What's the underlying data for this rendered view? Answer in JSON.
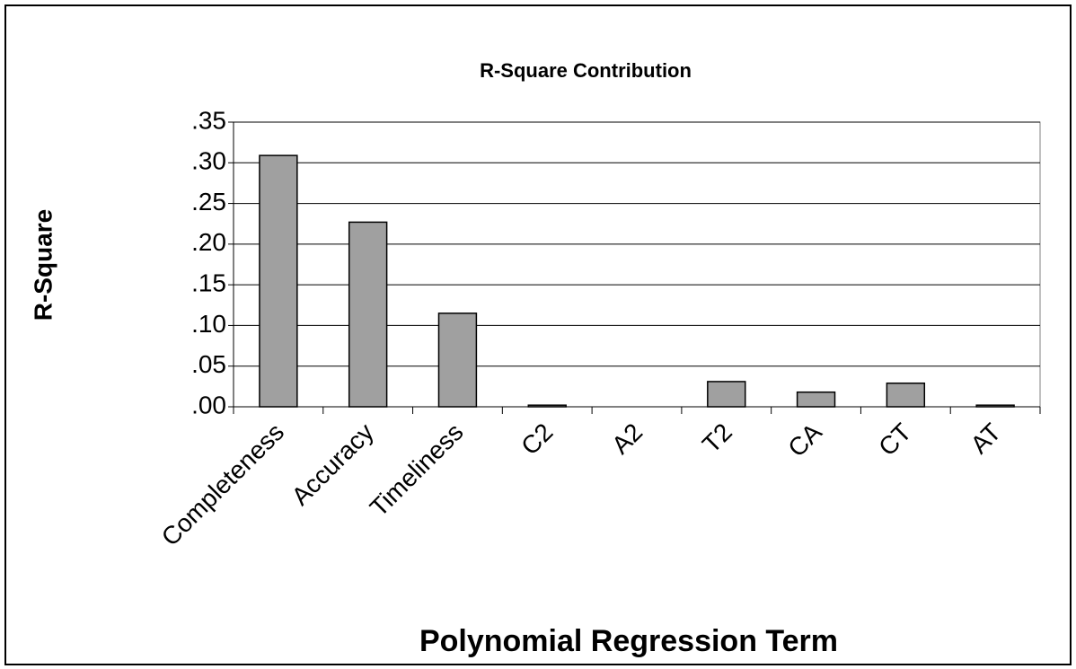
{
  "chart_data": {
    "type": "bar",
    "title": "R-Square Contribution",
    "x_label": "Polynomial Regression Term",
    "y_label": "R-Square",
    "categories": [
      "Completeness",
      "Accuracy",
      "Timeliness",
      "C2",
      "A2",
      "T2",
      "CA",
      "CT",
      "AT"
    ],
    "values": [
      0.309,
      0.227,
      0.115,
      0.002,
      0.0,
      0.031,
      0.018,
      0.029,
      0.002
    ],
    "color": "#a0a0a0",
    "ylim": [
      0,
      0.35
    ],
    "yticks": [
      {
        "value": 0,
        "label": ".00"
      },
      {
        "value": 0.05,
        "label": ".05"
      },
      {
        "value": 0.1,
        "label": ".10"
      },
      {
        "value": 0.15,
        "label": ".15"
      },
      {
        "value": 0.2,
        "label": ".20"
      },
      {
        "value": 0.25,
        "label": ".25"
      },
      {
        "value": 0.3,
        "label": ".30"
      },
      {
        "value": 0.35,
        "label": ".35"
      }
    ],
    "grid": true
  }
}
